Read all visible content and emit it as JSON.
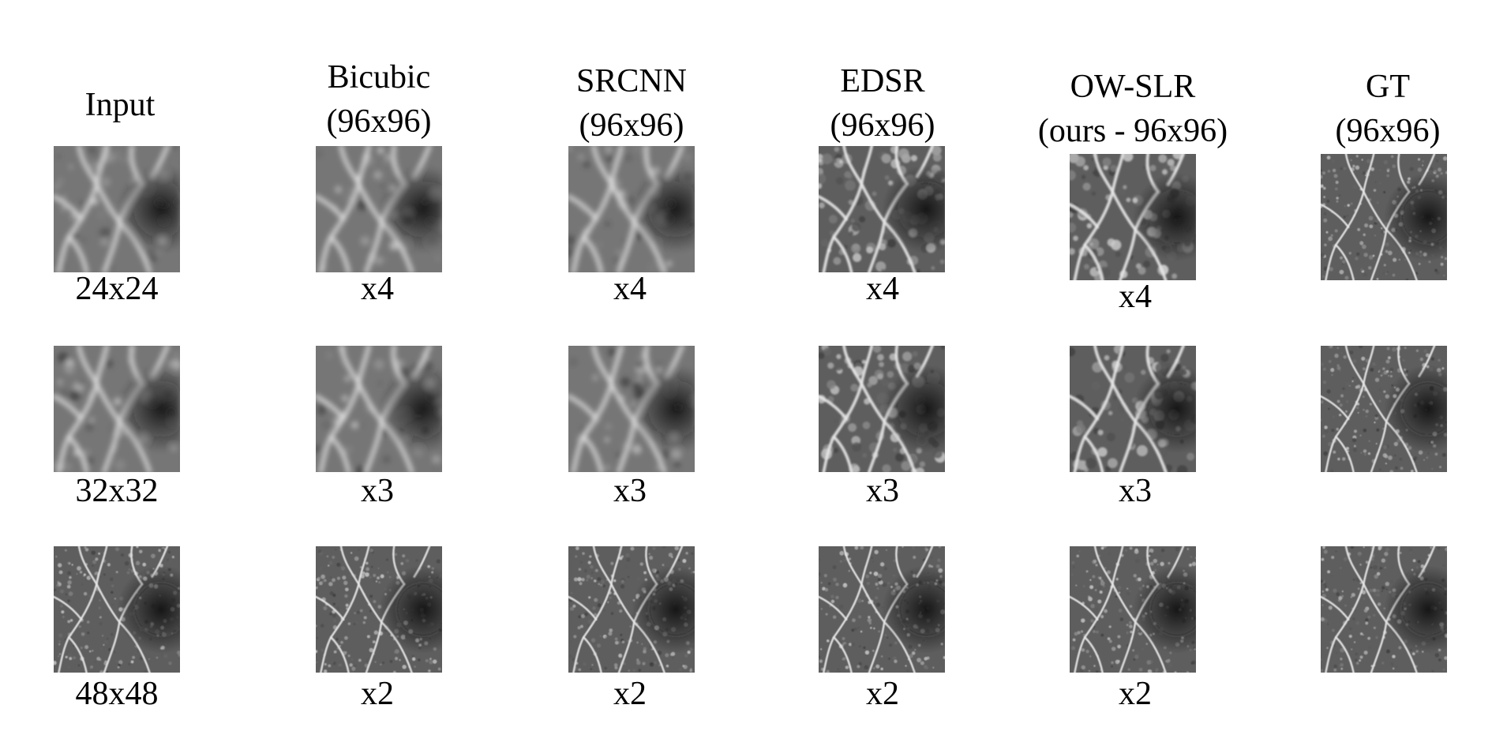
{
  "columns": [
    {
      "key": "input",
      "title_lines": [
        "Input"
      ]
    },
    {
      "key": "bicubic",
      "title_lines": [
        "Bicubic",
        "(96x96)"
      ]
    },
    {
      "key": "srcnn",
      "title_lines": [
        "SRCNN",
        "(96x96)"
      ]
    },
    {
      "key": "edsr",
      "title_lines": [
        "EDSR",
        "(96x96)"
      ]
    },
    {
      "key": "owslr",
      "title_lines": [
        "OW-SLR",
        "(ours - 96x96)"
      ]
    },
    {
      "key": "gt",
      "title_lines": [
        "GT",
        "(96x96)"
      ]
    }
  ],
  "rows": [
    {
      "labels": [
        "24x24",
        "x4",
        "x4",
        "x4",
        "x4",
        ""
      ]
    },
    {
      "labels": [
        "32x32",
        "x3",
        "x3",
        "x3",
        "x3",
        ""
      ]
    },
    {
      "labels": [
        "48x48",
        "x2",
        "x2",
        "x2",
        "x2",
        ""
      ]
    }
  ]
}
